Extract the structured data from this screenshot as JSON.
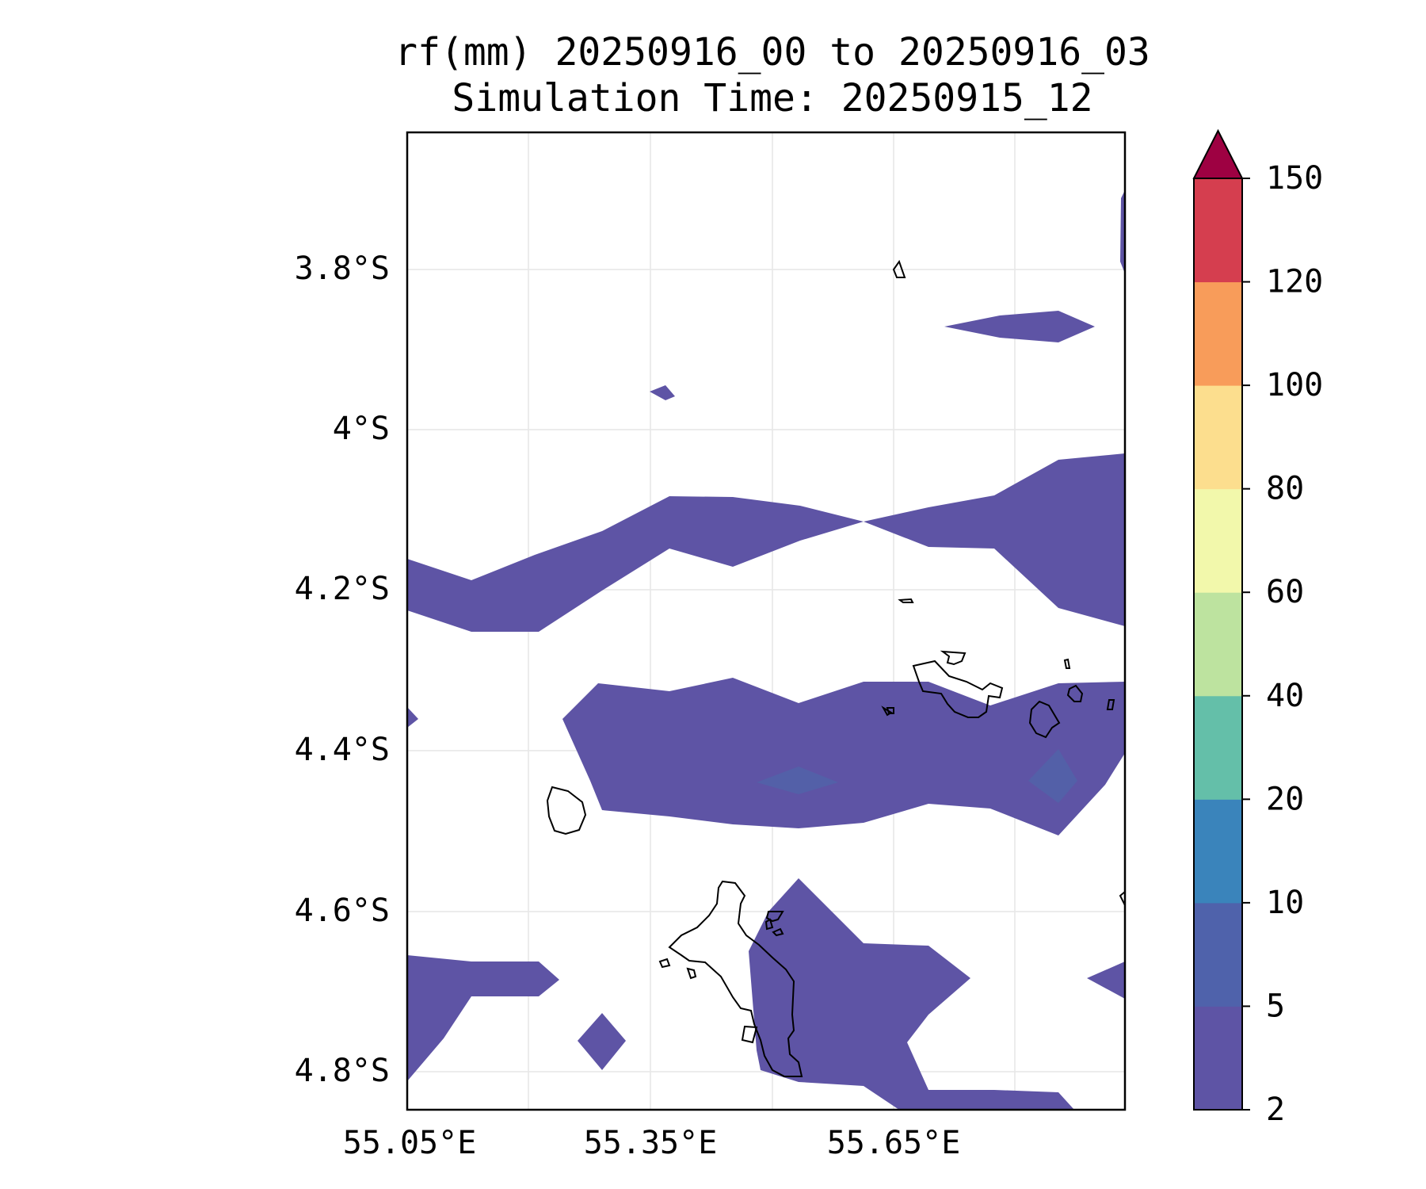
{
  "title": {
    "line1": "rf(mm) 20250916_00 to 20250916_03",
    "line2": "Simulation Time: 20250915_12"
  },
  "map": {
    "x_ticks": [
      "55.05°E",
      "55.35°E",
      "55.65°E"
    ],
    "y_ticks": [
      "3.8°S",
      "4°S",
      "4.2°S",
      "4.4°S",
      "4.6°S",
      "4.8°S"
    ],
    "fill_color": "#5e54a5",
    "grid": true
  },
  "colorbar": {
    "levels": [
      "2",
      "5",
      "10",
      "20",
      "40",
      "60",
      "80",
      "100",
      "120",
      "150"
    ],
    "colors": [
      "#5e54a5",
      "#4f62ab",
      "#3a84bb",
      "#64bfa9",
      "#bde39f",
      "#f2f8ab",
      "#fcde8e",
      "#f89c5a",
      "#d53e4f",
      "#9e0142"
    ],
    "extend": "max"
  }
}
